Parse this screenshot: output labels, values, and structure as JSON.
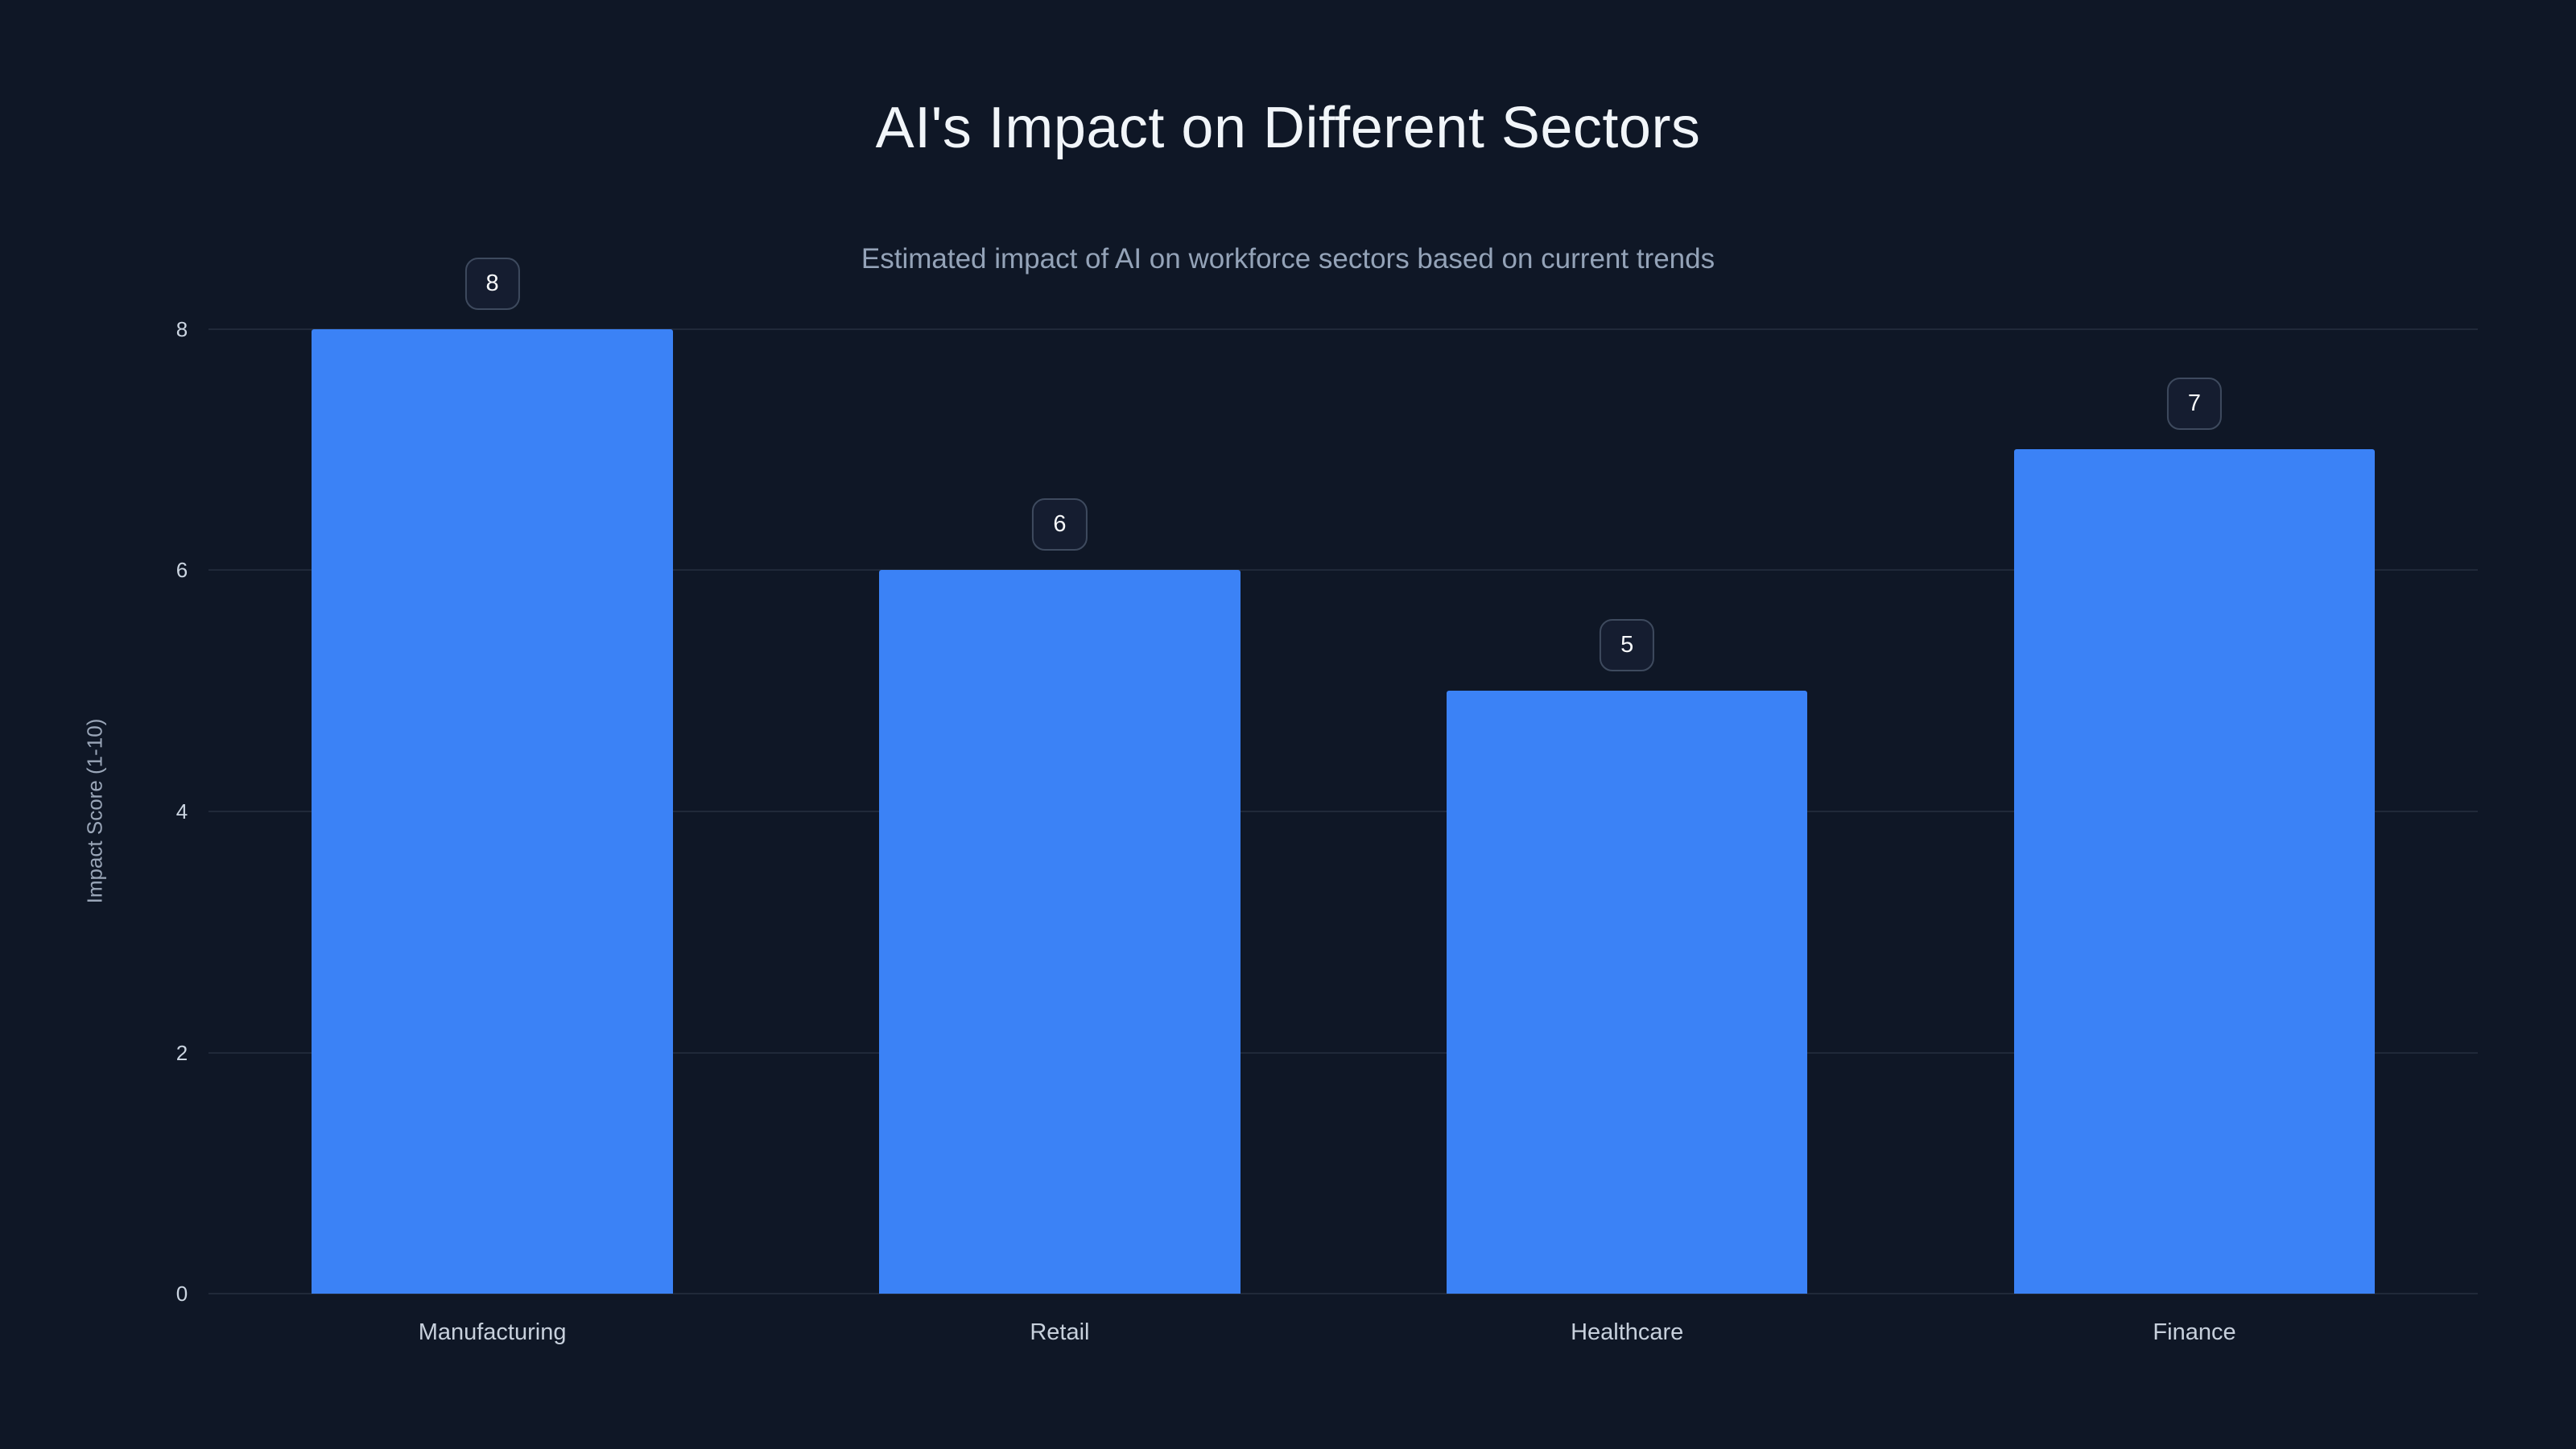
{
  "chart_data": {
    "type": "bar",
    "title": "AI's Impact on Different Sectors",
    "subtitle": "Estimated impact of AI on workforce sectors based on current trends",
    "categories": [
      "Manufacturing",
      "Retail",
      "Healthcare",
      "Finance"
    ],
    "values": [
      8,
      6,
      5,
      7
    ],
    "xlabel": "",
    "ylabel": "Impact Score (1-10)",
    "ylim": [
      0,
      8
    ],
    "yticks": [
      0,
      2,
      4,
      6,
      8
    ],
    "grid": true,
    "legend": false,
    "bar_labels": [
      "8",
      "6",
      "5",
      "7"
    ]
  },
  "colors": {
    "background": "#0f1726",
    "bar": "#3b82f6",
    "title": "#f1f5f9",
    "subtitle": "#94a3b8",
    "gridline": "rgba(148,163,184,0.13)",
    "badge_border": "#3e4a5e"
  }
}
